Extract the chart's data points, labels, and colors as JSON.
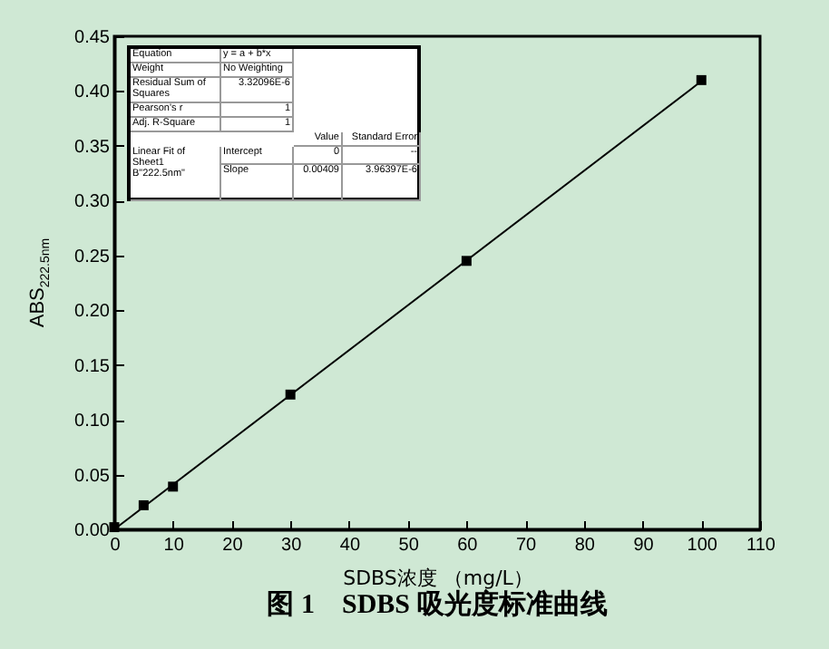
{
  "chart_data": {
    "type": "scatter",
    "title": "图 1　SDBS 吸光度标准曲线",
    "xlabel": "SDBS浓度 （mg/L）",
    "ylabel": "ABS$_{222.5nm}$",
    "xlim": [
      0,
      110
    ],
    "xticks": [
      0,
      10,
      20,
      30,
      40,
      50,
      60,
      70,
      80,
      90,
      100,
      110
    ],
    "ylim": [
      0,
      0.45
    ],
    "yticks": [
      {
        "value": 0,
        "label": "0.00"
      },
      0.05,
      {
        "value": 0.1,
        "label": "0.10"
      },
      0.15,
      {
        "value": 0.2,
        "label": "0.20"
      },
      0.25,
      {
        "value": 0.3,
        "label": "0.30"
      },
      0.35,
      {
        "value": 0.4,
        "label": "0.40"
      },
      0.45
    ],
    "grid": false,
    "series": [
      {
        "type": "scatter",
        "marker": "square",
        "color": "#000000",
        "x": [
          0,
          5,
          10,
          30,
          60,
          100
        ],
        "values": [
          0.002,
          0.022,
          0.039,
          0.123,
          0.245,
          0.41
        ]
      },
      {
        "type": "line",
        "color": "#000000",
        "line_style": "solid",
        "x": [
          0,
          100
        ],
        "values": [
          0,
          0.409
        ]
      }
    ],
    "annotations": [
      "Equation",
      "y = a + b*x",
      "Weight",
      "No Weighting",
      "Residual Sum of Squares",
      "3.32096E-6",
      "Pearson's r",
      "1",
      "Adj. R-Square",
      "1",
      "Value",
      "Standard Error",
      "Linear Fit of Sheet1 B\"222.5nm\"",
      "Intercept",
      "0",
      "--",
      "Slope",
      "0.00409",
      "3.96397E-6"
    ]
  }
}
